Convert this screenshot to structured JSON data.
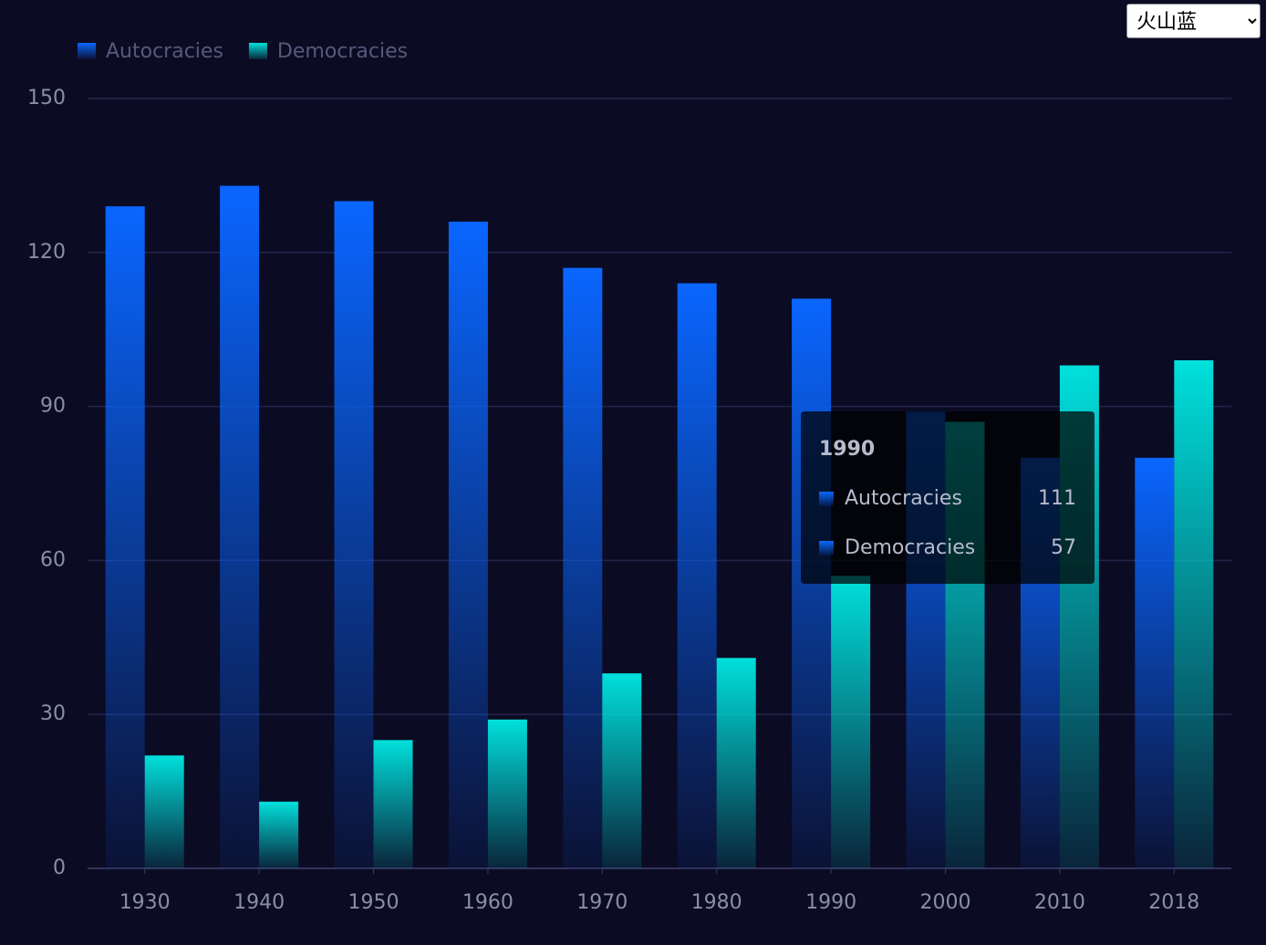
{
  "chart_data": {
    "type": "bar",
    "categories": [
      "1930",
      "1940",
      "1950",
      "1960",
      "1970",
      "1980",
      "1990",
      "2000",
      "2010",
      "2018"
    ],
    "series": [
      {
        "name": "Autocracies",
        "color": "#0a66ff",
        "values": [
          129,
          133,
          130,
          126,
          117,
          114,
          111,
          89,
          80,
          80
        ]
      },
      {
        "name": "Democracies",
        "color": "#00e0dc",
        "values": [
          22,
          13,
          25,
          29,
          38,
          41,
          57,
          87,
          98,
          99
        ]
      }
    ],
    "ylim": [
      0,
      150
    ],
    "yticks": [
      0,
      30,
      60,
      90,
      120,
      150
    ],
    "grid": true,
    "legend": "top-left",
    "tooltip_index": 6
  },
  "theme_selector": {
    "selected": "火山蓝"
  }
}
